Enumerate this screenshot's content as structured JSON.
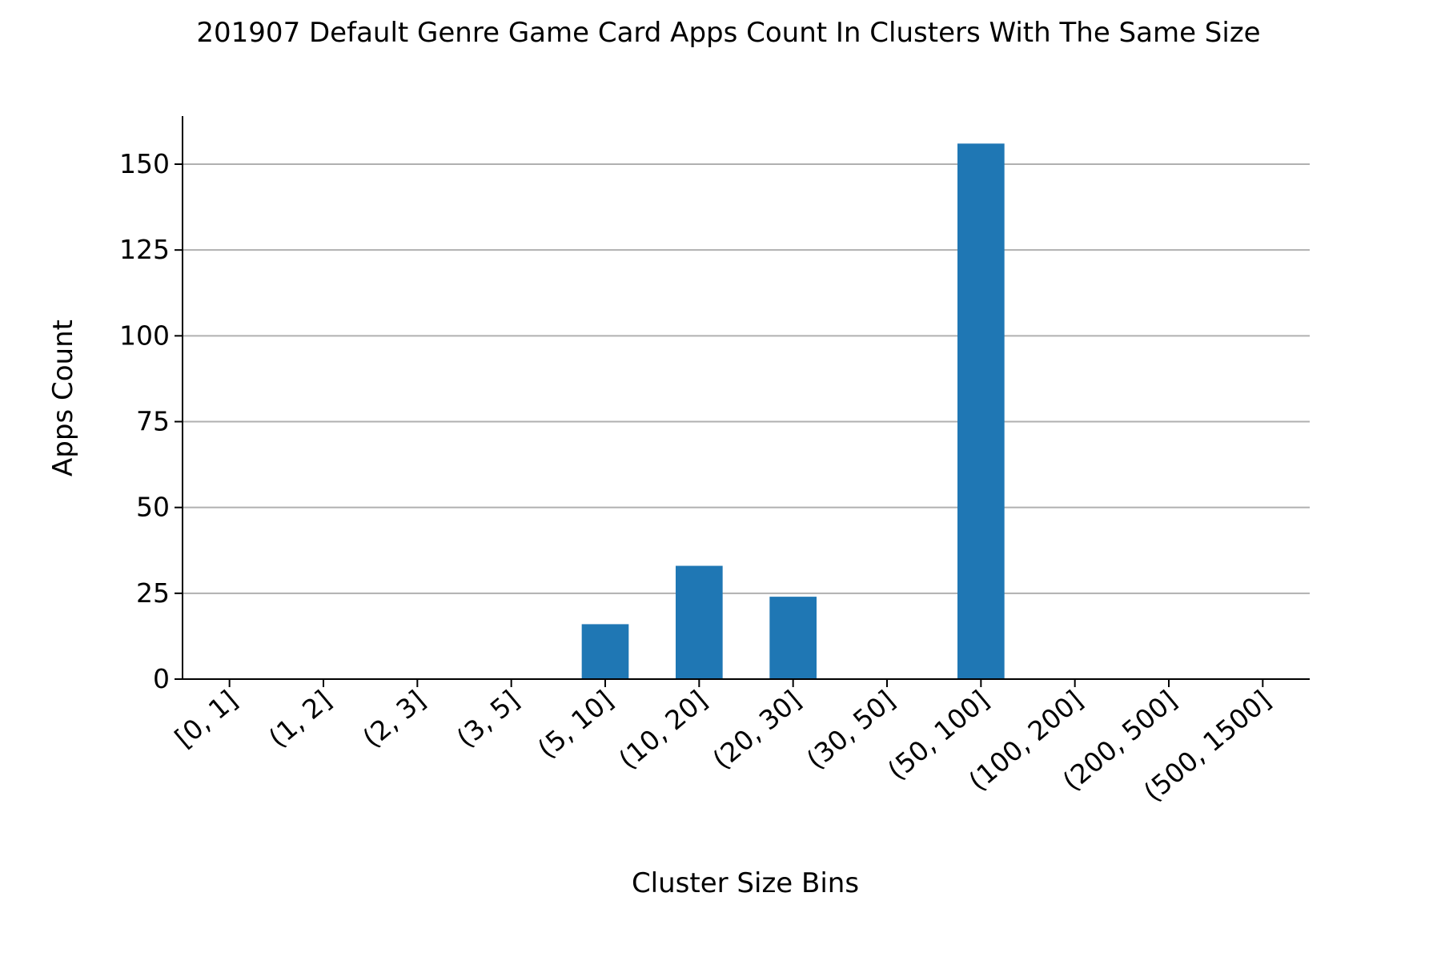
{
  "chart_data": {
    "type": "bar",
    "title": "201907 Default Genre Game Card Apps Count In Clusters With The Same Size",
    "xlabel": "Cluster Size Bins",
    "ylabel": "Apps Count",
    "categories": [
      "[0, 1]",
      "(1, 2]",
      "(2, 3]",
      "(3, 5]",
      "(5, 10]",
      "(10, 20]",
      "(20, 30]",
      "(30, 50]",
      "(50, 100]",
      "(100, 200]",
      "(200, 500]",
      "(500, 1500]"
    ],
    "values": [
      0,
      0,
      0,
      0,
      16,
      33,
      24,
      0,
      156,
      0,
      0,
      0
    ],
    "yticks": [
      0,
      25,
      50,
      75,
      100,
      125,
      150
    ],
    "ylim": [
      0,
      164
    ],
    "grid": "horizontal",
    "legend": "none",
    "colors": {
      "bar": "#1f77b4",
      "grid": "#b0b0b0",
      "axis": "#000000"
    }
  }
}
